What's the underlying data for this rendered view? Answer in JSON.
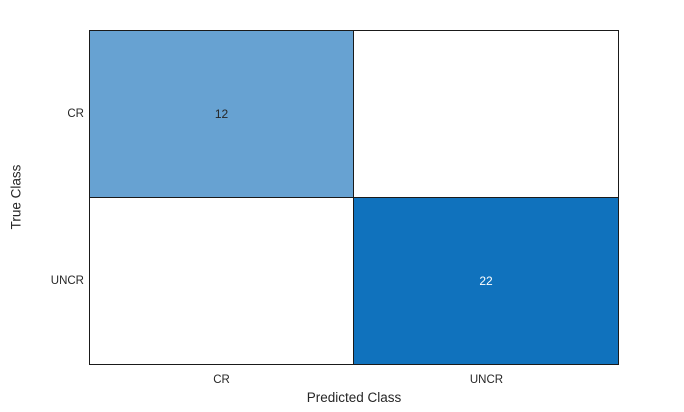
{
  "chart_data": {
    "type": "heatmap",
    "subtype": "confusion-matrix",
    "title": "",
    "xlabel": "Predicted Class",
    "ylabel": "True Class",
    "x_categories": [
      "CR",
      "UNCR"
    ],
    "y_categories": [
      "CR",
      "UNCR"
    ],
    "matrix": [
      [
        12,
        0
      ],
      [
        0,
        22
      ]
    ],
    "cells": [
      {
        "row": "CR",
        "col": "CR",
        "label": "12",
        "bg": "#67a2d2",
        "fg": "#262626"
      },
      {
        "row": "CR",
        "col": "UNCR",
        "label": "",
        "bg": "#ffffff",
        "fg": "#262626"
      },
      {
        "row": "UNCR",
        "col": "CR",
        "label": "",
        "bg": "#ffffff",
        "fg": "#262626"
      },
      {
        "row": "UNCR",
        "col": "UNCR",
        "label": "22",
        "bg": "#1072bd",
        "fg": "#ffffff"
      }
    ],
    "layout": {
      "grid": "off",
      "legend": "none",
      "border_color": "#1a1a1a",
      "text_color": "#262626",
      "background": "#ffffff"
    }
  },
  "axes": {
    "x_label": "Predicted Class",
    "y_label": "True Class",
    "x_ticks": [
      "CR",
      "UNCR"
    ],
    "y_ticks": [
      "CR",
      "UNCR"
    ]
  }
}
